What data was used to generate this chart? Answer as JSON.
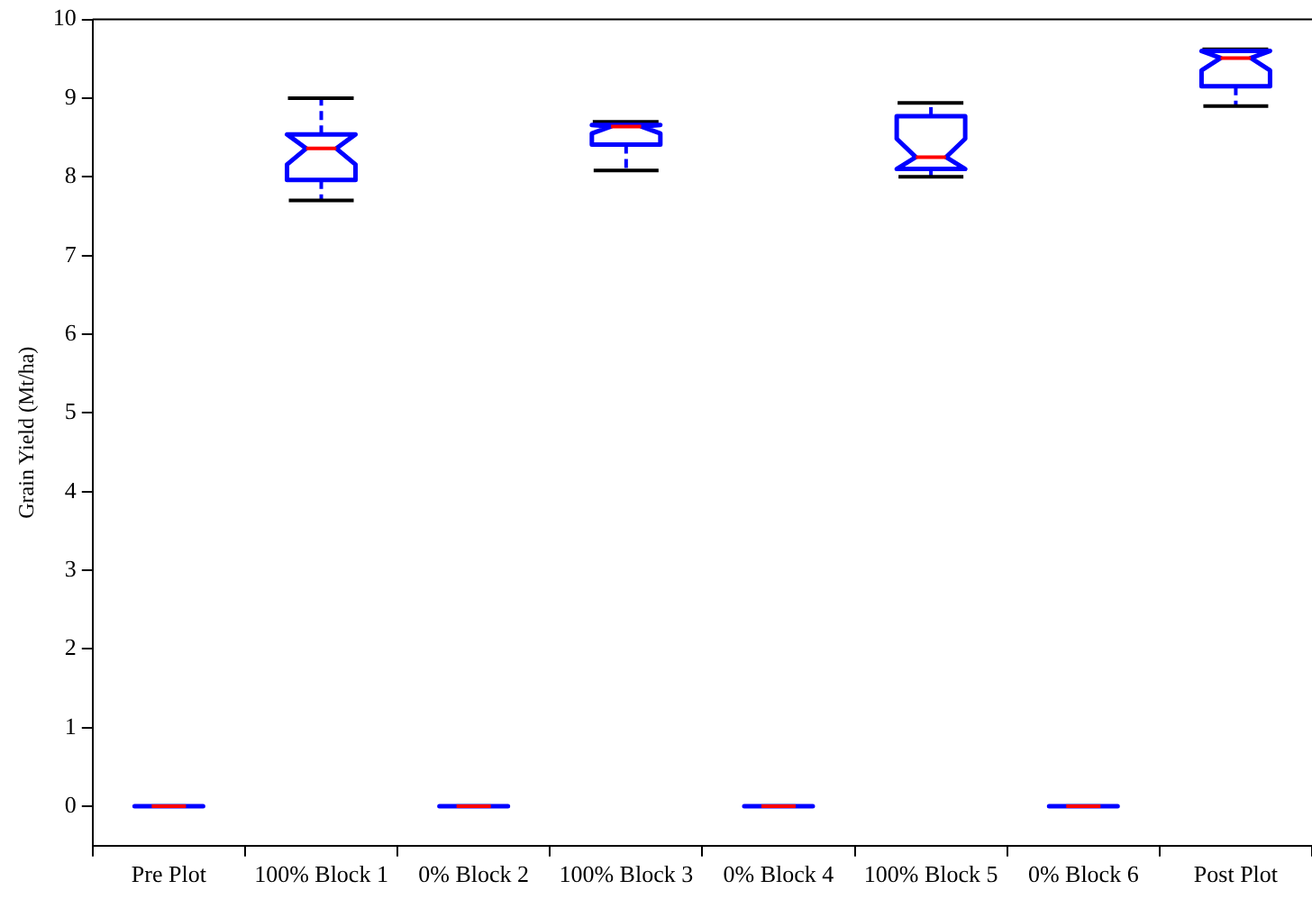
{
  "chart_data": {
    "type": "box",
    "ylabel": "Grain Yield (Mt/ha)",
    "categories": [
      "Pre Plot",
      "100% Block 1",
      "0% Block 2",
      "100% Block 3",
      "0% Block 4",
      "100% Block 5",
      "0% Block 6",
      "Post Plot"
    ],
    "boxes": [
      {
        "low": 0,
        "q1": 0,
        "median": 0,
        "q3": 0,
        "high": 0
      },
      {
        "low": 7.7,
        "q1": 7.96,
        "median": 8.36,
        "q3": 8.54,
        "high": 9.0
      },
      {
        "low": 0,
        "q1": 0,
        "median": 0,
        "q3": 0,
        "high": 0
      },
      {
        "low": 8.08,
        "q1": 8.41,
        "median": 8.64,
        "q3": 8.66,
        "high": 8.7
      },
      {
        "low": 0,
        "q1": 0,
        "median": 0,
        "q3": 0,
        "high": 0
      },
      {
        "low": 8.0,
        "q1": 8.1,
        "median": 8.25,
        "q3": 8.77,
        "high": 8.94
      },
      {
        "low": 0,
        "q1": 0,
        "median": 0,
        "q3": 0,
        "high": 0
      },
      {
        "low": 8.9,
        "q1": 9.15,
        "median": 9.51,
        "q3": 9.6,
        "high": 9.62
      }
    ],
    "color": "#0000ff",
    "ylim": [
      -0.5,
      10
    ],
    "yticks": [
      0,
      1,
      2,
      3,
      4,
      5,
      6,
      7,
      8,
      9,
      10
    ],
    "grid": false,
    "legend": false,
    "line_style": "dashed"
  }
}
